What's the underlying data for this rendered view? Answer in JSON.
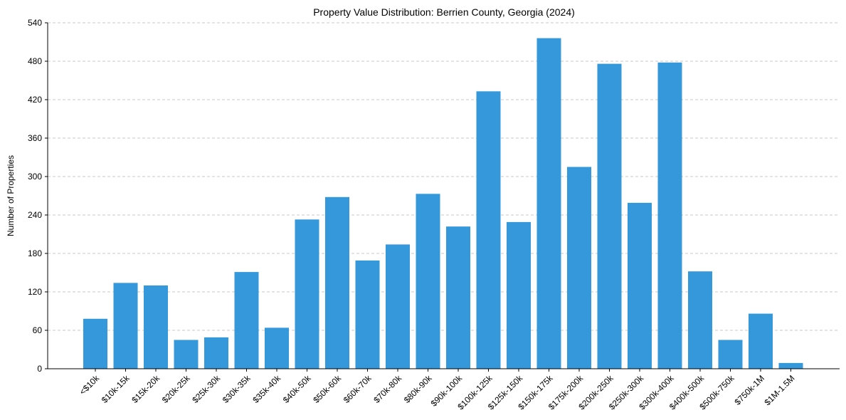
{
  "chart_data": {
    "type": "bar",
    "title": "Property Value Distribution: Berrien County, Georgia (2024)",
    "xlabel": "",
    "ylabel": "Number of Properties",
    "ylim": [
      0,
      540
    ],
    "yticks": [
      0,
      60,
      120,
      180,
      240,
      300,
      360,
      420,
      480,
      540
    ],
    "grid": "horizontal-dashed",
    "bar_color": "#3498db",
    "categories": [
      "<$10k",
      "$10k-15k",
      "$15k-20k",
      "$20k-25k",
      "$25k-30k",
      "$30k-35k",
      "$35k-40k",
      "$40k-50k",
      "$50k-60k",
      "$60k-70k",
      "$70k-80k",
      "$80k-90k",
      "$90k-100k",
      "$100k-125k",
      "$125k-150k",
      "$150k-175k",
      "$175k-200k",
      "$200k-250k",
      "$250k-300k",
      "$300k-400k",
      "$400k-500k",
      "$500k-750k",
      "$750k-1M",
      "$1M-1.5M"
    ],
    "values": [
      78,
      134,
      130,
      45,
      49,
      151,
      64,
      233,
      268,
      169,
      194,
      273,
      222,
      433,
      229,
      516,
      315,
      476,
      259,
      478,
      152,
      45,
      86,
      9
    ]
  }
}
